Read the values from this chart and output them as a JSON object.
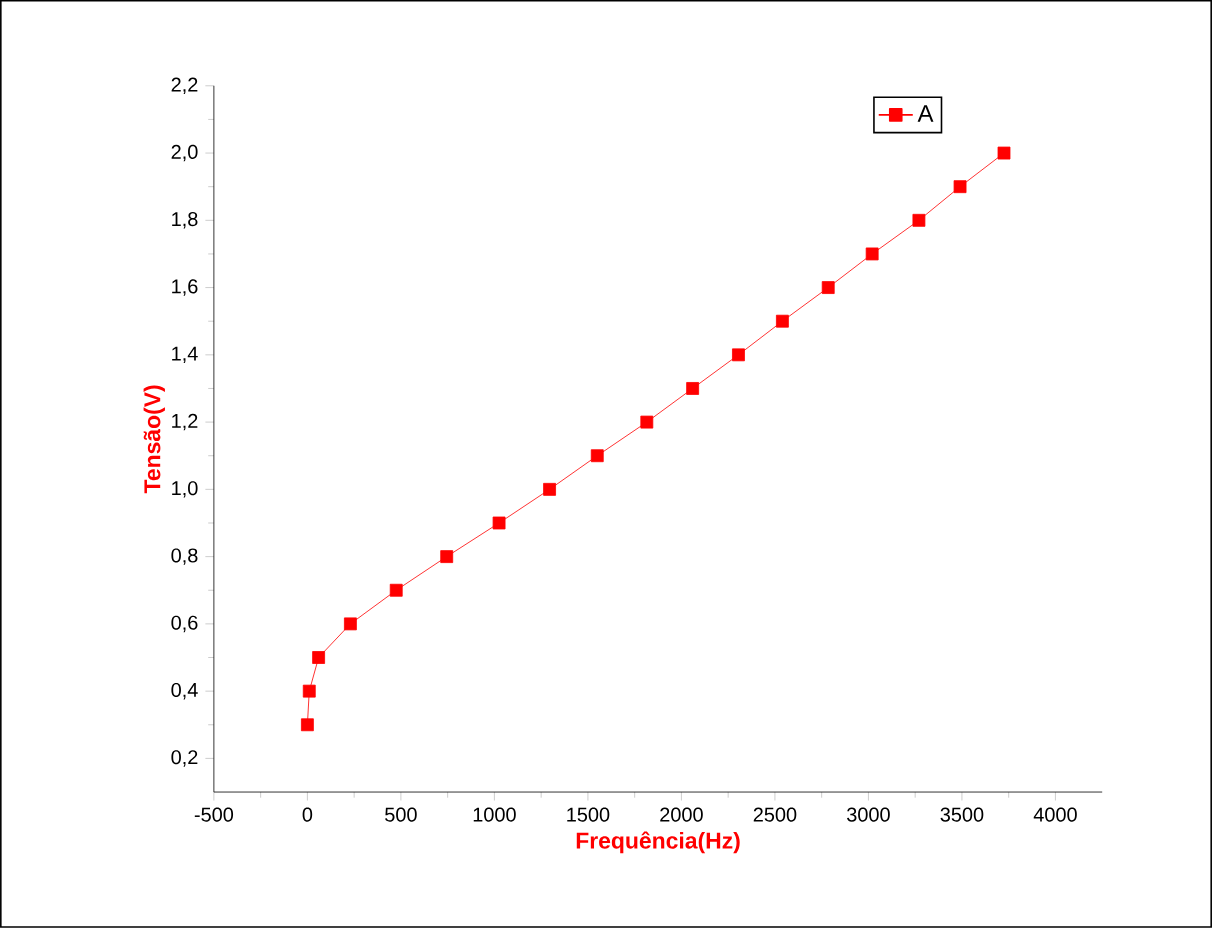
{
  "chart_data": {
    "type": "line",
    "xlabel": "Frequência(Hz)",
    "ylabel": "Tensão(V)",
    "x": [
      0,
      10,
      60,
      230,
      475,
      745,
      1025,
      1295,
      1550,
      1815,
      2060,
      2305,
      2540,
      2785,
      3020,
      3270,
      3490,
      3725
    ],
    "series": [
      {
        "name": "A",
        "color": "#ff0000",
        "values": [
          0.3,
          0.4,
          0.5,
          0.6,
          0.7,
          0.8,
          0.9,
          1.0,
          1.1,
          1.2,
          1.3,
          1.4,
          1.5,
          1.6,
          1.7,
          1.8,
          1.9,
          2.0
        ]
      }
    ],
    "xlim": [
      -500,
      4250
    ],
    "ylim": [
      0.1,
      2.2
    ],
    "xticks": [
      -500,
      0,
      500,
      1000,
      1500,
      2000,
      2500,
      3000,
      3500,
      4000
    ],
    "yticks": [
      {
        "value": 0.2,
        "label": "0,2"
      },
      {
        "value": 0.4,
        "label": "0,4"
      },
      {
        "value": 0.6,
        "label": "0,6"
      },
      {
        "value": 0.8,
        "label": "0,8"
      },
      {
        "value": 1.0,
        "label": "1,0"
      },
      {
        "value": 1.2,
        "label": "1,2"
      },
      {
        "value": 1.4,
        "label": "1,4"
      },
      {
        "value": 1.6,
        "label": "1,6"
      },
      {
        "value": 1.8,
        "label": "1,8"
      },
      {
        "value": 2.0,
        "label": "2,0"
      },
      {
        "value": 2.2,
        "label": "2,2"
      }
    ],
    "grid": false,
    "legend": "top right",
    "marker": "square",
    "line_style": "solid"
  }
}
